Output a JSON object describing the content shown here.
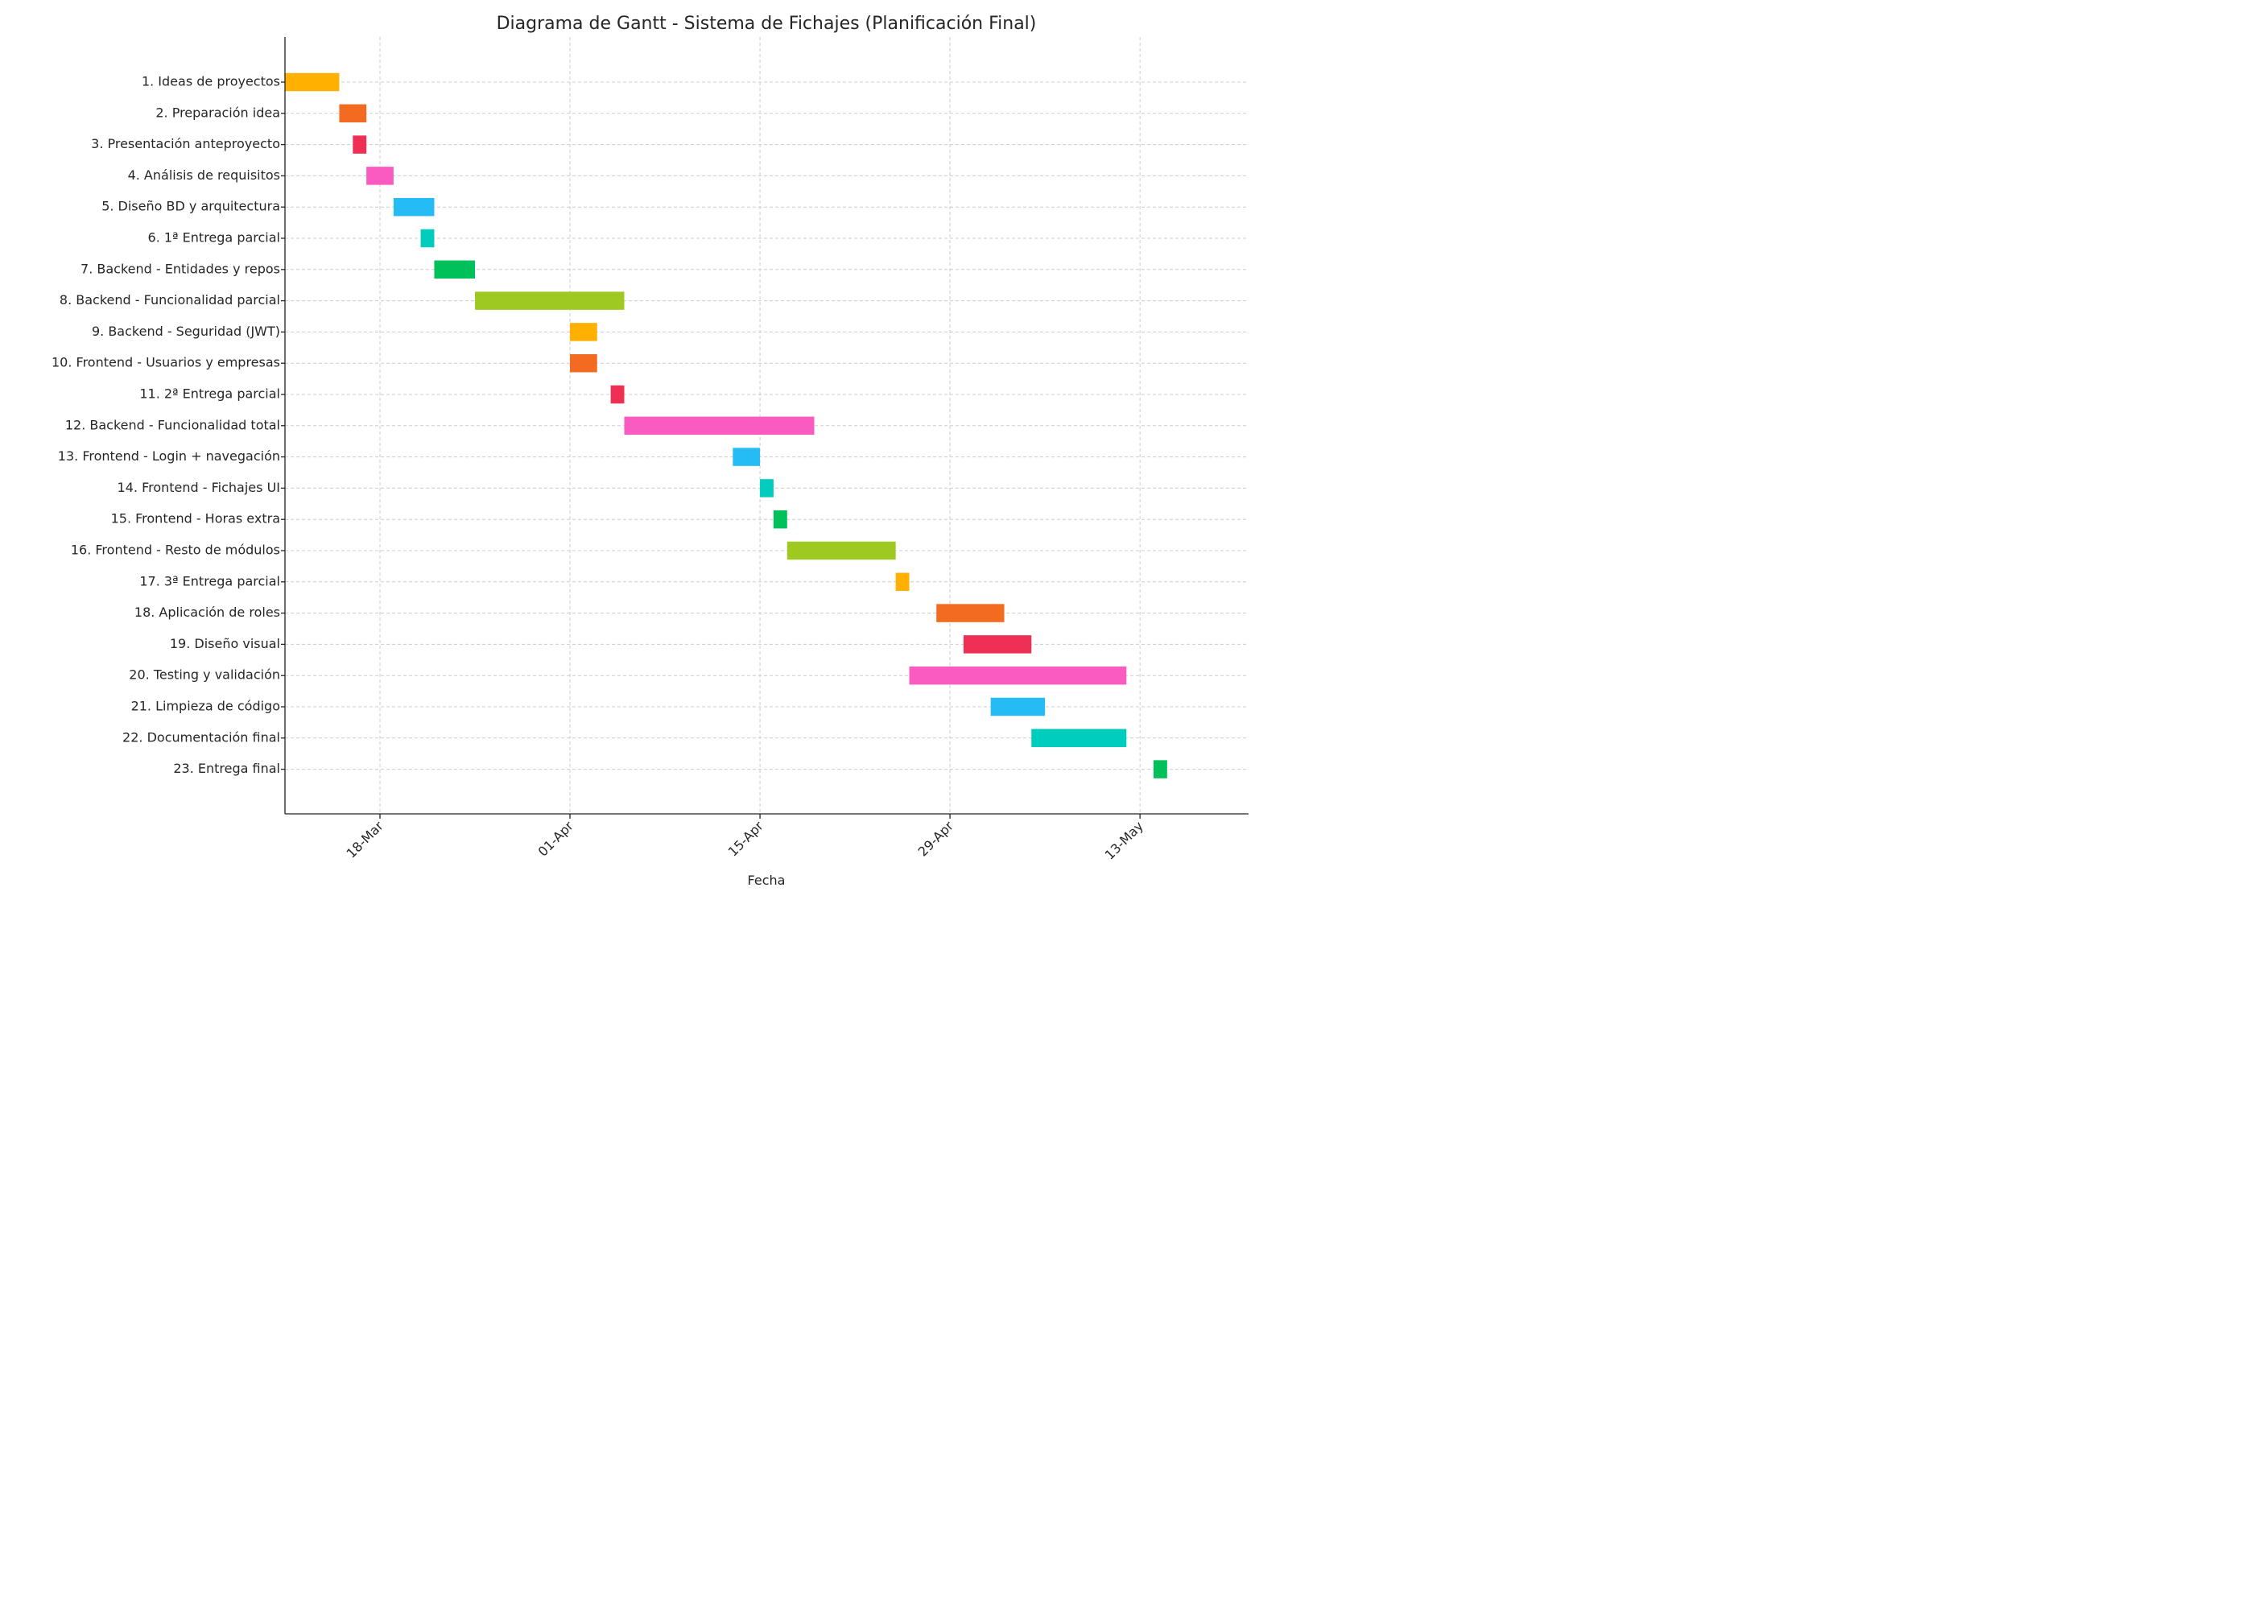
{
  "chart_data": {
    "type": "gantt",
    "title": "Diagrama de Gantt - Sistema de Fichajes (Planificación Final)",
    "xlabel": "Fecha",
    "ylabel": "",
    "grid": true,
    "x_range": [
      "2025-03-11",
      "2025-05-21"
    ],
    "x_ticks": [
      {
        "date": "2025-03-18",
        "label": "18-Mar"
      },
      {
        "date": "2025-04-01",
        "label": "01-Apr"
      },
      {
        "date": "2025-04-15",
        "label": "15-Apr"
      },
      {
        "date": "2025-04-29",
        "label": "29-Apr"
      },
      {
        "date": "2025-05-13",
        "label": "13-May"
      }
    ],
    "tasks": [
      {
        "label": "1. Ideas de proyectos",
        "start": "2025-03-11",
        "end": "2025-03-15",
        "color": "#FFB000"
      },
      {
        "label": "2. Preparación idea",
        "start": "2025-03-15",
        "end": "2025-03-17",
        "color": "#F26B21"
      },
      {
        "label": "3. Presentación anteproyecto",
        "start": "2025-03-16",
        "end": "2025-03-17",
        "color": "#EF3054"
      },
      {
        "label": "4. Análisis de requisitos",
        "start": "2025-03-17",
        "end": "2025-03-19",
        "color": "#F95BC0"
      },
      {
        "label": "5. Diseño BD y arquitectura",
        "start": "2025-03-19",
        "end": "2025-03-22",
        "color": "#25BCF5"
      },
      {
        "label": "6. 1ª Entrega parcial",
        "start": "2025-03-21",
        "end": "2025-03-22",
        "color": "#00CDBE"
      },
      {
        "label": "7. Backend - Entidades y repos",
        "start": "2025-03-22",
        "end": "2025-03-25",
        "color": "#00C05A"
      },
      {
        "label": "8. Backend - Funcionalidad parcial",
        "start": "2025-03-25",
        "end": "2025-04-05",
        "color": "#9DC920"
      },
      {
        "label": "9. Backend - Seguridad (JWT)",
        "start": "2025-04-01",
        "end": "2025-04-03",
        "color": "#FFB000"
      },
      {
        "label": "10. Frontend - Usuarios y empresas",
        "start": "2025-04-01",
        "end": "2025-04-03",
        "color": "#F26B21"
      },
      {
        "label": "11. 2ª Entrega parcial",
        "start": "2025-04-04",
        "end": "2025-04-05",
        "color": "#EF3054"
      },
      {
        "label": "12. Backend - Funcionalidad total",
        "start": "2025-04-05",
        "end": "2025-04-19",
        "color": "#F95BC0"
      },
      {
        "label": "13. Frontend - Login + navegación",
        "start": "2025-04-13",
        "end": "2025-04-15",
        "color": "#25BCF5"
      },
      {
        "label": "14. Frontend - Fichajes UI",
        "start": "2025-04-15",
        "end": "2025-04-16",
        "color": "#00CDBE"
      },
      {
        "label": "15. Frontend - Horas extra",
        "start": "2025-04-16",
        "end": "2025-04-17",
        "color": "#00C05A"
      },
      {
        "label": "16. Frontend - Resto de módulos",
        "start": "2025-04-17",
        "end": "2025-04-25",
        "color": "#9DC920"
      },
      {
        "label": "17. 3ª Entrega parcial",
        "start": "2025-04-25",
        "end": "2025-04-26",
        "color": "#FFB000"
      },
      {
        "label": "18. Aplicación de roles",
        "start": "2025-04-28",
        "end": "2025-05-03",
        "color": "#F26B21"
      },
      {
        "label": "19. Diseño visual",
        "start": "2025-04-30",
        "end": "2025-05-05",
        "color": "#EF3054"
      },
      {
        "label": "20. Testing y validación",
        "start": "2025-04-26",
        "end": "2025-05-12",
        "color": "#F95BC0"
      },
      {
        "label": "21. Limpieza de código",
        "start": "2025-05-02",
        "end": "2025-05-06",
        "color": "#25BCF5"
      },
      {
        "label": "22. Documentación final",
        "start": "2025-05-05",
        "end": "2025-05-12",
        "color": "#00CDBE"
      },
      {
        "label": "23. Entrega final",
        "start": "2025-05-14",
        "end": "2025-05-15",
        "color": "#00C05A"
      }
    ]
  }
}
